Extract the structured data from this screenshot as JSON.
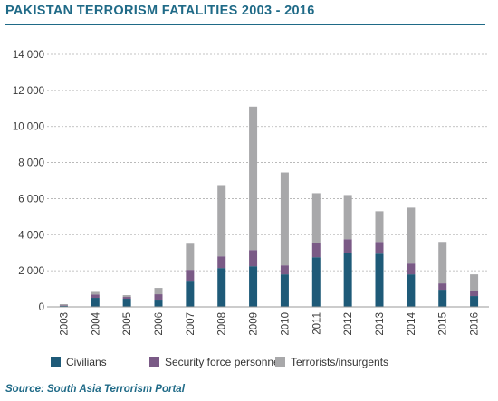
{
  "title": "PAKISTAN TERRORISM FATALITIES 2003 - 2016",
  "source": "Source: South Asia Terrorism Portal",
  "chart_data": {
    "type": "bar",
    "stacked": true,
    "title": "PAKISTAN TERRORISM FATALITIES 2003 - 2016",
    "xlabel": "",
    "ylabel": "",
    "categories": [
      "2003",
      "2004",
      "2005",
      "2006",
      "2007",
      "2008",
      "2009",
      "2010",
      "2011",
      "2012",
      "2013",
      "2014",
      "2015",
      "2016"
    ],
    "series": [
      {
        "name": "Civilians",
        "color": "#1e5a78",
        "values": [
          50,
          500,
          450,
          400,
          1450,
          2150,
          2250,
          1800,
          2750,
          3000,
          2950,
          1800,
          950,
          600
        ]
      },
      {
        "name": "Security force personnel",
        "color": "#7a5a86",
        "values": [
          30,
          180,
          100,
          300,
          600,
          650,
          900,
          500,
          800,
          750,
          650,
          600,
          350,
          300
        ]
      },
      {
        "name": "Terrorists/insurgents",
        "color": "#a8a8aa",
        "values": [
          70,
          150,
          100,
          350,
          1450,
          3950,
          7950,
          5150,
          2750,
          2450,
          1700,
          3100,
          2300,
          900
        ]
      }
    ],
    "ylim": [
      0,
      14000
    ],
    "yticks": [
      0,
      2000,
      4000,
      6000,
      8000,
      10000,
      12000,
      14000
    ],
    "ytick_labels": [
      "0",
      "2 000",
      "4 000",
      "6 000",
      "8 000",
      "10 000",
      "12 000",
      "14 000"
    ],
    "grid": true,
    "legend_position": "bottom"
  }
}
